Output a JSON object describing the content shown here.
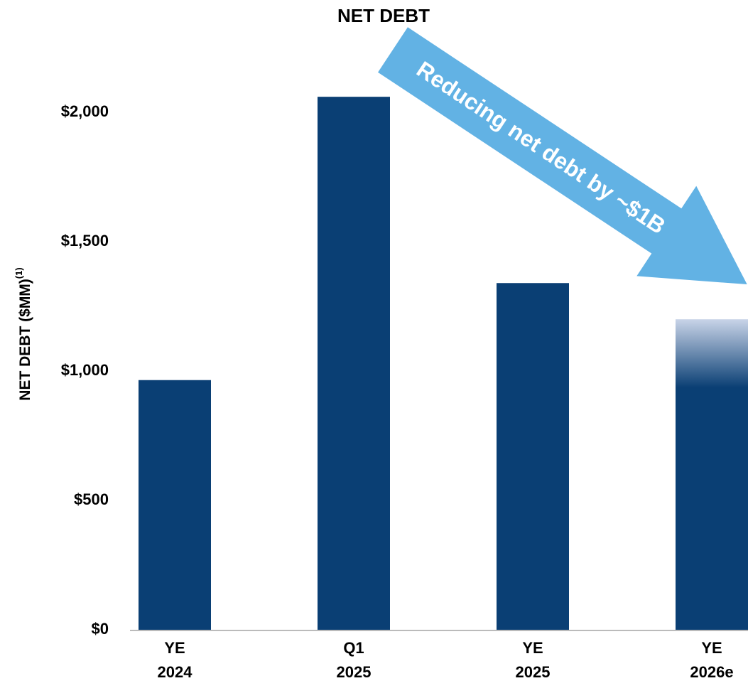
{
  "chart_data": {
    "type": "bar",
    "title": "NET DEBT",
    "y_axis_label": "NET DEBT ($MM)",
    "y_axis_label_footnote": "(1)",
    "categories": [
      "YE 2024",
      "Q1 2025",
      "YE 2025",
      "YE 2026e"
    ],
    "values": [
      965,
      2060,
      1340,
      1200
    ],
    "color": "#0a3f74",
    "ylim": [
      0,
      2100
    ],
    "yticks": [
      {
        "value": 0,
        "label": "$0"
      },
      {
        "value": 500,
        "label": "$500"
      },
      {
        "value": 1000,
        "label": "$1,000"
      },
      {
        "value": 1500,
        "label": "$1,500"
      },
      {
        "value": 2000,
        "label": "$2,000"
      }
    ],
    "grid": false,
    "annotation": "Reducing net debt by ~$1B",
    "annotation_color": "#62b2e4"
  }
}
